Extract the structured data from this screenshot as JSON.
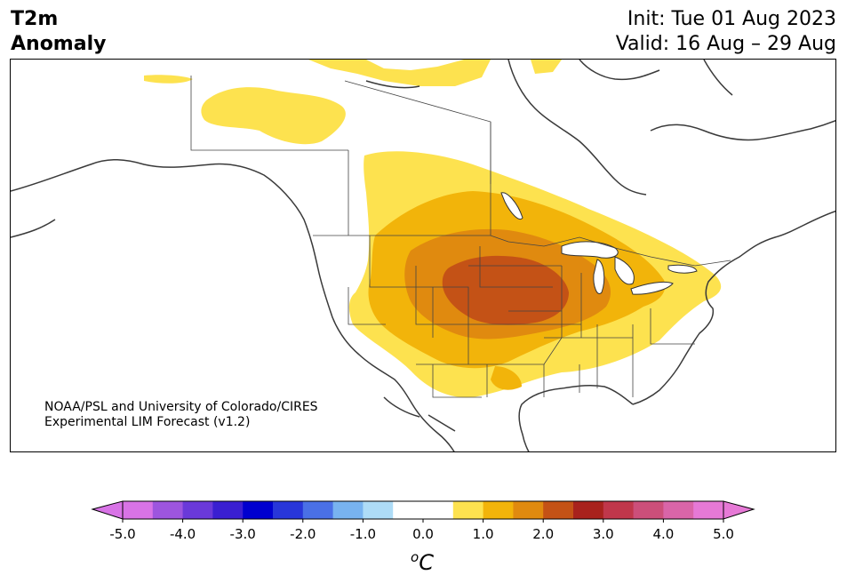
{
  "header": {
    "title_line1": "T2m",
    "title_line2": "Anomaly",
    "init": "Init: Tue 01 Aug 2023",
    "valid": "Valid: 16 Aug – 29 Aug"
  },
  "credit": {
    "line1": "NOAA/PSL and University of Colorado/CIRES",
    "line2": "Experimental LIM Forecast (v1.2)"
  },
  "colorbar": {
    "unit_sup": "o",
    "unit_base": "C",
    "ticks": [
      "-5.0",
      "-4.0",
      "-3.0",
      "-2.0",
      "-1.0",
      "0.0",
      "1.0",
      "2.0",
      "3.0",
      "4.0",
      "5.0"
    ],
    "colors": [
      "#d873e6",
      "#9d55de",
      "#6a39d9",
      "#3a1fd1",
      "#0000cf",
      "#2836d9",
      "#4a70e6",
      "#78b3f0",
      "#aedcf7",
      "#ffffff",
      "#ffffff",
      "#fde24f",
      "#f2b40a",
      "#e08a0f",
      "#c45216",
      "#a8221d",
      "#c0374b",
      "#cc4f7a",
      "#d965a8",
      "#e679d6"
    ]
  }
}
